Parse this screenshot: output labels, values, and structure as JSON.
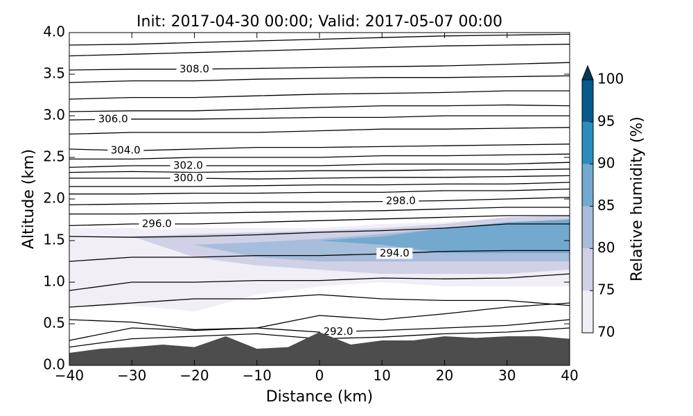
{
  "chart_data": {
    "type": "contour",
    "title": "Init: 2017-04-30 00:00; Valid: 2017-05-07 00:00",
    "x_label": "Distance (km)",
    "y_label": "Altitude (km)",
    "xlim": [
      -40,
      40
    ],
    "ylim": [
      0,
      4.0
    ],
    "xticks": [
      {
        "value": -40,
        "label": "−40"
      },
      {
        "value": -30,
        "label": "−30"
      },
      {
        "value": -20,
        "label": "−20"
      },
      {
        "value": -10,
        "label": "−10"
      },
      0,
      10,
      20,
      30,
      40
    ],
    "yticks": [
      {
        "value": 0,
        "label": "0.0"
      },
      {
        "value": 0.5,
        "label": "0.5"
      },
      {
        "value": 1,
        "label": "1.0"
      },
      {
        "value": 1.5,
        "label": "1.5"
      },
      {
        "value": 2,
        "label": "2.0"
      },
      {
        "value": 2.5,
        "label": "2.5"
      },
      {
        "value": 3,
        "label": "3.0"
      },
      {
        "value": 3.5,
        "label": "3.5"
      },
      {
        "value": 4,
        "label": "4.0"
      }
    ],
    "x": [
      -40,
      -30,
      -20,
      -10,
      0,
      10,
      20,
      30,
      40
    ],
    "contours": [
      {
        "values": [
          3.85,
          3.86,
          3.88,
          3.9,
          3.92,
          3.94,
          3.96,
          3.97,
          3.98
        ]
      },
      {
        "values": [
          3.72,
          3.74,
          3.76,
          3.78,
          3.8,
          3.82,
          3.84,
          3.85,
          3.86
        ]
      },
      {
        "values": [
          3.55,
          3.56,
          3.56,
          3.57,
          3.58,
          3.59,
          3.6,
          3.62,
          3.64
        ],
        "label": "308.0"
      },
      {
        "values": [
          3.4,
          3.42,
          3.42,
          3.44,
          3.45,
          3.46,
          3.46,
          3.47,
          3.48
        ]
      },
      {
        "values": [
          3.2,
          3.22,
          3.22,
          3.24,
          3.26,
          3.27,
          3.28,
          3.3,
          3.3
        ]
      },
      {
        "values": [
          3.05,
          3.06,
          3.06,
          3.08,
          3.1,
          3.12,
          3.12,
          3.13,
          3.12
        ]
      },
      {
        "values": [
          2.95,
          2.96,
          2.96,
          2.97,
          2.98,
          2.98,
          3.0,
          3.0,
          3.0
        ],
        "label": "306.0"
      },
      {
        "values": [
          2.78,
          2.8,
          2.8,
          2.8,
          2.82,
          2.84,
          2.84,
          2.85,
          2.86
        ]
      },
      {
        "values": [
          2.6,
          2.58,
          2.6,
          2.62,
          2.62,
          2.63,
          2.64,
          2.65,
          2.66
        ],
        "label": "304.0"
      },
      {
        "values": [
          2.48,
          2.48,
          2.5,
          2.5,
          2.5,
          2.52,
          2.52,
          2.53,
          2.54
        ]
      },
      {
        "values": [
          2.38,
          2.4,
          2.4,
          2.4,
          2.4,
          2.42,
          2.42,
          2.42,
          2.44
        ],
        "label": "302.0"
      },
      {
        "values": [
          2.32,
          2.33,
          2.32,
          2.33,
          2.34,
          2.34,
          2.35,
          2.35,
          2.36
        ]
      },
      {
        "values": [
          2.25,
          2.25,
          2.25,
          2.24,
          2.25,
          2.26,
          2.26,
          2.27,
          2.28
        ],
        "label": "300.0"
      },
      {
        "values": [
          2.15,
          2.15,
          2.15,
          2.16,
          2.17,
          2.17,
          2.18,
          2.18,
          2.2
        ]
      },
      {
        "values": [
          2.06,
          2.06,
          2.07,
          2.07,
          2.08,
          2.08,
          2.1,
          2.1,
          2.12
        ]
      },
      {
        "values": [
          1.93,
          1.94,
          1.95,
          1.96,
          1.96,
          1.97,
          1.98,
          2.0,
          2.02
        ],
        "label": "298.0"
      },
      {
        "values": [
          1.82,
          1.82,
          1.83,
          1.84,
          1.85,
          1.86,
          1.88,
          1.9,
          1.9
        ]
      },
      {
        "values": [
          1.68,
          1.7,
          1.7,
          1.72,
          1.74,
          1.76,
          1.78,
          1.8,
          1.8
        ],
        "label": "296.0"
      },
      {
        "values": [
          1.55,
          1.54,
          1.55,
          1.57,
          1.6,
          1.62,
          1.65,
          1.7,
          1.7
        ]
      },
      {
        "values": [
          1.25,
          1.3,
          1.3,
          1.32,
          1.32,
          1.34,
          1.37,
          1.38,
          1.38
        ],
        "label": "294.0"
      },
      {
        "values": [
          0.9,
          1.0,
          1.0,
          1.02,
          1.02,
          1.05,
          1.04,
          1.05,
          1.1
        ]
      },
      {
        "values": [
          0.7,
          0.75,
          0.8,
          0.8,
          0.85,
          0.8,
          0.78,
          0.78,
          0.72
        ]
      },
      {
        "values": [
          0.55,
          0.52,
          0.43,
          0.45,
          0.6,
          0.55,
          0.62,
          0.7,
          0.75
        ]
      },
      {
        "values": [
          0.3,
          0.45,
          0.42,
          0.45,
          0.4,
          0.42,
          0.45,
          0.48,
          0.55
        ],
        "label": "292.0"
      },
      {
        "values": [
          0.22,
          0.32,
          0.35,
          0.38,
          0.32,
          0.34,
          0.38,
          0.4,
          0.45
        ]
      }
    ],
    "rh_regions": [
      {
        "level": 70,
        "top": [
          1.65,
          1.65,
          1.65,
          1.65,
          1.65,
          1.7,
          1.72,
          1.78,
          1.8
        ],
        "bottom": [
          0.7,
          0.72,
          0.65,
          0.85,
          0.95,
          1.0,
          0.95,
          0.95,
          0.95
        ]
      },
      {
        "level": 75,
        "top": [
          1.5,
          1.55,
          1.58,
          1.6,
          1.62,
          1.65,
          1.7,
          1.78,
          1.8
        ],
        "bottom": [
          1.5,
          1.55,
          1.3,
          1.2,
          1.15,
          1.1,
          1.1,
          1.1,
          1.15
        ]
      },
      {
        "level": 80,
        "top": [
          1.45,
          1.45,
          1.45,
          1.48,
          1.52,
          1.58,
          1.65,
          1.72,
          1.76
        ],
        "bottom": [
          1.45,
          1.45,
          1.45,
          1.3,
          1.25,
          1.25,
          1.25,
          1.25,
          1.25
        ]
      },
      {
        "level": 85,
        "top": [
          1.5,
          1.5,
          1.5,
          1.5,
          1.5,
          1.55,
          1.65,
          1.72,
          1.75
        ],
        "bottom": [
          1.5,
          1.5,
          1.5,
          1.5,
          1.5,
          1.45,
          1.35,
          1.35,
          1.35
        ]
      }
    ],
    "terrain": {
      "color": "#4d4d4d",
      "x": [
        -40,
        -35,
        -30,
        -25,
        -20,
        -15,
        -10,
        -5,
        0,
        5,
        10,
        15,
        20,
        25,
        30,
        35,
        40
      ],
      "values": [
        0.15,
        0.2,
        0.22,
        0.25,
        0.22,
        0.35,
        0.2,
        0.22,
        0.4,
        0.25,
        0.3,
        0.3,
        0.35,
        0.33,
        0.35,
        0.35,
        0.32
      ]
    },
    "colorbar": {
      "label": "Relative humidity (%)",
      "levels": [
        70,
        75,
        80,
        85,
        90,
        95,
        100
      ],
      "colors": [
        "#f1eef6",
        "#d0d1e6",
        "#a6bddb",
        "#74a9cf",
        "#2b8cbe",
        "#045a8d"
      ],
      "extend_color": "#023858",
      "ticks": [
        70,
        75,
        80,
        85,
        90,
        95,
        100
      ]
    }
  }
}
